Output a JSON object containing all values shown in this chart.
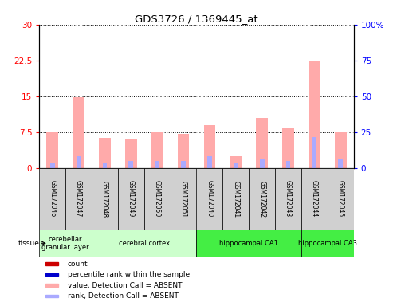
{
  "title": "GDS3726 / 1369445_at",
  "samples": [
    "GSM172046",
    "GSM172047",
    "GSM172048",
    "GSM172049",
    "GSM172050",
    "GSM172051",
    "GSM172040",
    "GSM172041",
    "GSM172042",
    "GSM172043",
    "GSM172044",
    "GSM172045"
  ],
  "absent_value": [
    7.5,
    14.8,
    6.3,
    6.2,
    7.5,
    7.2,
    9.0,
    2.5,
    10.5,
    8.5,
    22.5,
    7.5
  ],
  "absent_rank_pct": [
    3.3,
    8.3,
    3.3,
    5.0,
    5.0,
    5.0,
    8.3,
    3.3,
    6.7,
    5.0,
    21.7,
    6.7
  ],
  "tissues": [
    {
      "label": "cerebellar\ngranular layer",
      "start": 0,
      "end": 2,
      "color": "#ccffcc"
    },
    {
      "label": "cerebral cortex",
      "start": 2,
      "end": 6,
      "color": "#ccffcc"
    },
    {
      "label": "hippocampal CA1",
      "start": 6,
      "end": 10,
      "color": "#44ee44"
    },
    {
      "label": "hippocampal CA3",
      "start": 10,
      "end": 12,
      "color": "#44ee44"
    }
  ],
  "ylim_left": [
    0,
    30
  ],
  "ylim_right": [
    0,
    100
  ],
  "yticks_left": [
    0,
    7.5,
    15,
    22.5,
    30
  ],
  "yticks_right": [
    0,
    25,
    50,
    75,
    100
  ],
  "ytick_labels_left": [
    "0",
    "7.5",
    "15",
    "22.5",
    "30"
  ],
  "ytick_labels_right": [
    "0",
    "25",
    "50",
    "75",
    "100%"
  ],
  "color_absent_value": "#ffaaaa",
  "color_absent_rank": "#aaaaff",
  "legend_items": [
    {
      "label": "count",
      "color": "#cc0000"
    },
    {
      "label": "percentile rank within the sample",
      "color": "#0000cc"
    },
    {
      "label": "value, Detection Call = ABSENT",
      "color": "#ffaaaa"
    },
    {
      "label": "rank, Detection Call = ABSENT",
      "color": "#aaaaff"
    }
  ],
  "sample_box_color": "#d0d0d0",
  "fig_bg": "#ffffff"
}
